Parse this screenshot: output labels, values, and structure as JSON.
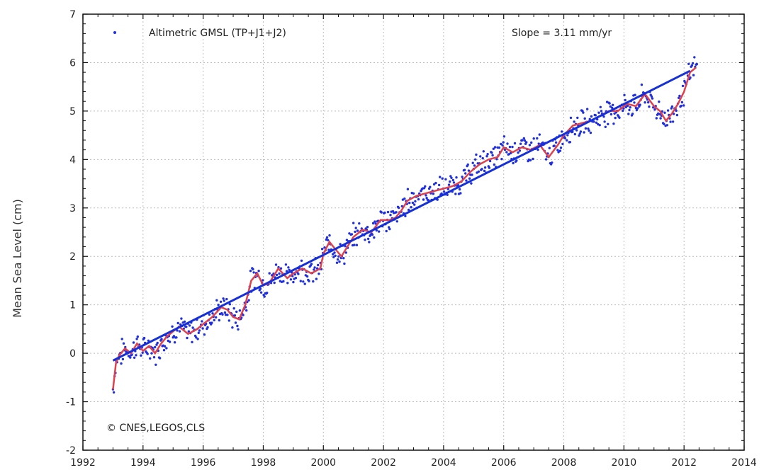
{
  "chart_data": {
    "type": "scatter",
    "title": "",
    "xlabel": "",
    "ylabel": "Mean Sea Level (cm)",
    "xlim": [
      1992,
      2014
    ],
    "ylim": [
      -2,
      7
    ],
    "x_ticks": [
      1992,
      1994,
      1996,
      1998,
      2000,
      2002,
      2004,
      2006,
      2008,
      2010,
      2012,
      2014
    ],
    "y_ticks": [
      -2,
      -1,
      0,
      1,
      2,
      3,
      4,
      5,
      6,
      7
    ],
    "grid": true,
    "legend": {
      "position": "top-left",
      "entries": [
        "Altimetric GMSL (TP+J1+J2)"
      ]
    },
    "annotations": {
      "slope": "Slope = 3.11 mm/yr",
      "credit": "© CNES,LEGOS,CLS"
    },
    "series": [
      {
        "name": "Altimetric GMSL (TP+J1+J2)",
        "kind": "points",
        "color": "#1f2fe0",
        "smooth": {
          "x": [
            1993.0,
            1993.1,
            1993.2,
            1993.4,
            1993.6,
            1993.8,
            1994.0,
            1994.2,
            1994.4,
            1994.6,
            1994.8,
            1995.0,
            1995.2,
            1995.5,
            1995.8,
            1996.0,
            1996.3,
            1996.6,
            1996.8,
            1997.0,
            1997.2,
            1997.4,
            1997.6,
            1997.8,
            1998.0,
            1998.2,
            1998.5,
            1998.8,
            1999.0,
            1999.3,
            1999.6,
            1999.9,
            2000.0,
            2000.2,
            2000.4,
            2000.6,
            2000.8,
            2001.0,
            2001.3,
            2001.6,
            2001.9,
            2002.2,
            2002.4,
            2002.6,
            2002.8,
            2003.1,
            2003.4,
            2003.7,
            2004.0,
            2004.3,
            2004.6,
            2004.9,
            2005.2,
            2005.5,
            2005.8,
            2006.0,
            2006.3,
            2006.6,
            2006.9,
            2007.2,
            2007.5,
            2007.8,
            2008.0,
            2008.3,
            2008.6,
            2008.9,
            2009.2,
            2009.5,
            2009.8,
            2010.1,
            2010.4,
            2010.7,
            2011.0,
            2011.2,
            2011.4,
            2011.6,
            2011.8,
            2012.0,
            2012.2,
            2012.4
          ],
          "y": [
            -0.75,
            -0.2,
            -0.05,
            0.1,
            0.0,
            0.2,
            0.05,
            0.15,
            0.0,
            0.2,
            0.35,
            0.45,
            0.55,
            0.4,
            0.5,
            0.6,
            0.75,
            0.95,
            0.9,
            0.75,
            0.7,
            1.0,
            1.5,
            1.65,
            1.4,
            1.45,
            1.75,
            1.55,
            1.65,
            1.75,
            1.65,
            1.75,
            2.05,
            2.3,
            2.15,
            2.0,
            2.2,
            2.4,
            2.55,
            2.5,
            2.75,
            2.75,
            2.8,
            2.95,
            3.15,
            3.25,
            3.3,
            3.35,
            3.4,
            3.45,
            3.55,
            3.75,
            3.9,
            4.0,
            4.05,
            4.25,
            4.15,
            4.25,
            4.2,
            4.3,
            4.05,
            4.3,
            4.5,
            4.7,
            4.75,
            4.8,
            4.9,
            5.0,
            5.0,
            5.15,
            5.1,
            5.35,
            5.1,
            5.0,
            4.8,
            4.95,
            5.15,
            5.4,
            5.8,
            5.9
          ]
        }
      },
      {
        "name": "",
        "kind": "smoothed",
        "color": "#e0414b",
        "x": [
          1993.0,
          1993.1,
          1993.2,
          1993.4,
          1993.6,
          1993.8,
          1994.0,
          1994.2,
          1994.4,
          1994.6,
          1994.8,
          1995.0,
          1995.2,
          1995.5,
          1995.8,
          1996.0,
          1996.3,
          1996.6,
          1996.8,
          1997.0,
          1997.2,
          1997.4,
          1997.6,
          1997.8,
          1998.0,
          1998.2,
          1998.5,
          1998.8,
          1999.0,
          1999.3,
          1999.6,
          1999.9,
          2000.0,
          2000.2,
          2000.4,
          2000.6,
          2000.8,
          2001.0,
          2001.3,
          2001.6,
          2001.9,
          2002.2,
          2002.4,
          2002.6,
          2002.8,
          2003.1,
          2003.4,
          2003.7,
          2004.0,
          2004.3,
          2004.6,
          2004.9,
          2005.2,
          2005.5,
          2005.8,
          2006.0,
          2006.3,
          2006.6,
          2006.9,
          2007.2,
          2007.5,
          2007.8,
          2008.0,
          2008.3,
          2008.6,
          2008.9,
          2009.2,
          2009.5,
          2009.8,
          2010.1,
          2010.4,
          2010.7,
          2011.0,
          2011.2,
          2011.4,
          2011.6,
          2011.8,
          2012.0,
          2012.2,
          2012.4
        ],
        "y": [
          -0.75,
          -0.2,
          -0.05,
          0.1,
          0.0,
          0.2,
          0.05,
          0.15,
          0.0,
          0.2,
          0.35,
          0.45,
          0.55,
          0.4,
          0.5,
          0.6,
          0.75,
          0.95,
          0.9,
          0.75,
          0.7,
          1.0,
          1.5,
          1.65,
          1.4,
          1.45,
          1.75,
          1.55,
          1.65,
          1.75,
          1.65,
          1.75,
          2.05,
          2.3,
          2.15,
          2.0,
          2.2,
          2.4,
          2.55,
          2.5,
          2.75,
          2.75,
          2.8,
          2.95,
          3.15,
          3.25,
          3.3,
          3.35,
          3.4,
          3.45,
          3.55,
          3.75,
          3.9,
          4.0,
          4.05,
          4.25,
          4.15,
          4.25,
          4.2,
          4.3,
          4.05,
          4.3,
          4.5,
          4.7,
          4.75,
          4.8,
          4.9,
          5.0,
          5.0,
          5.15,
          5.1,
          5.35,
          5.1,
          5.0,
          4.8,
          4.95,
          5.15,
          5.4,
          5.8,
          5.9
        ]
      },
      {
        "name": "",
        "kind": "trend",
        "color": "#1530d8",
        "x": [
          1993.0,
          2012.2
        ],
        "y": [
          -0.15,
          5.83
        ]
      }
    ]
  }
}
